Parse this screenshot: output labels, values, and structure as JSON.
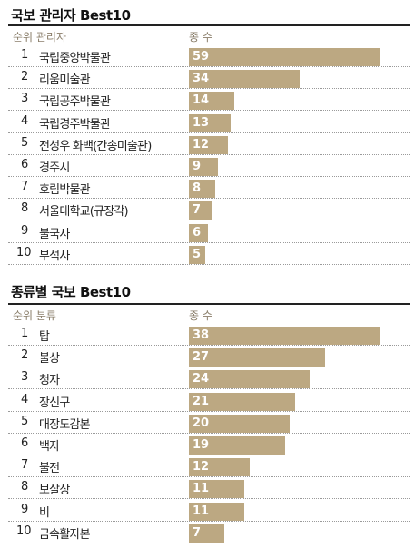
{
  "chart_data": [
    {
      "type": "bar",
      "title": "국보 관리자 Best10",
      "rank_header": "순위 관리자",
      "value_header": "종 수",
      "ranks": [
        "1",
        "2",
        "3",
        "4",
        "5",
        "6",
        "7",
        "8",
        "9",
        "10"
      ],
      "categories": [
        "국립중앙박물관",
        "리움미술관",
        "국립공주박물관",
        "국립경주박물관",
        "전성우 화백(간송미술관)",
        "경주시",
        "호림박물관",
        "서울대학교(규장각)",
        "불국사",
        "부석사"
      ],
      "values": [
        59,
        34,
        14,
        13,
        12,
        9,
        8,
        7,
        6,
        5
      ],
      "xlim": [
        0,
        59
      ]
    },
    {
      "type": "bar",
      "title": "종류별 국보 Best10",
      "rank_header": "순위 분류",
      "value_header": "종 수",
      "ranks": [
        "1",
        "2",
        "3",
        "4",
        "5",
        "6",
        "7",
        "8",
        "9",
        "10"
      ],
      "categories": [
        "탑",
        "불상",
        "청자",
        "장신구",
        "대장도감본",
        "백자",
        "불전",
        "보살상",
        "비",
        "금속활자본"
      ],
      "values": [
        38,
        27,
        24,
        21,
        20,
        19,
        12,
        11,
        11,
        7
      ],
      "xlim": [
        0,
        38
      ]
    }
  ]
}
